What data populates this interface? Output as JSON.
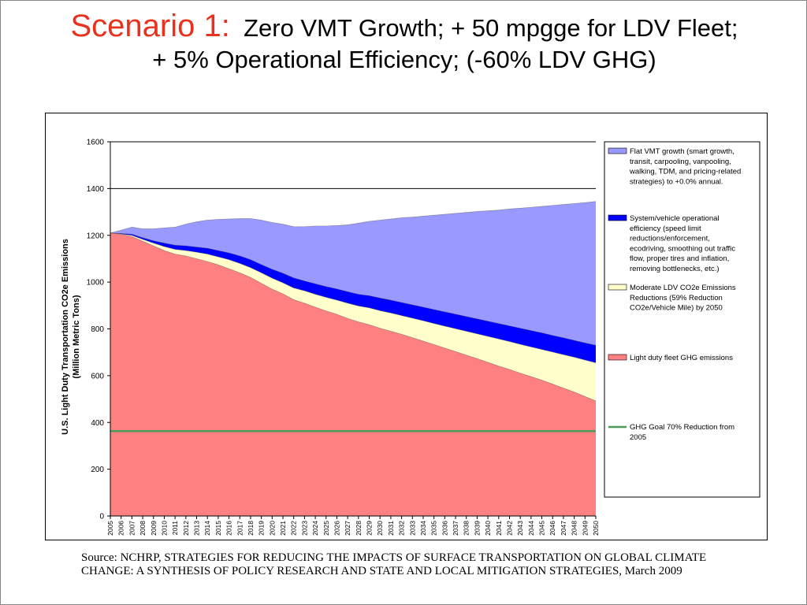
{
  "title": {
    "scenario": "Scenario 1",
    "colon": ":",
    "line1_rest": "Zero VMT Growth; + 50 mpgge for LDV Fleet;",
    "line2": "+ 5% Operational Efficiency; (-60% LDV GHG)"
  },
  "source": "Source:  NCHRP, STRATEGIES FOR REDUCING THE IMPACTS OF SURFACE TRANSPORTATION ON GLOBAL CLIMATE CHANGE:  A SYNTHESIS OF POLICY RESEARCH AND STATE AND LOCAL MITIGATION STRATEGIES, March 2009",
  "chart_data": {
    "type": "area",
    "ylabel_line1": "U.S. Light Duty Transportation CO2e Emissions",
    "ylabel_line2": "(Million  Metric Tons)",
    "ylim": [
      0,
      1600
    ],
    "yticks": [
      0,
      200,
      400,
      600,
      800,
      1000,
      1200,
      1400,
      1600
    ],
    "gridlines": [
      1400,
      1600
    ],
    "legend_position": "right",
    "x": [
      2005,
      2006,
      2007,
      2008,
      2009,
      2010,
      2011,
      2012,
      2013,
      2014,
      2015,
      2016,
      2017,
      2018,
      2019,
      2020,
      2021,
      2022,
      2023,
      2024,
      2025,
      2026,
      2027,
      2028,
      2029,
      2030,
      2031,
      2032,
      2033,
      2034,
      2035,
      2036,
      2037,
      2038,
      2039,
      2040,
      2041,
      2042,
      2043,
      2044,
      2045,
      2046,
      2047,
      2048,
      2049,
      2050
    ],
    "series": [
      {
        "name": "Light duty fleet GHG emissions",
        "color": "#ff8080",
        "values": [
          1210,
          1205,
          1195,
          1175,
          1155,
          1135,
          1120,
          1112,
          1100,
          1088,
          1074,
          1057,
          1040,
          1020,
          995,
          970,
          950,
          925,
          910,
          893,
          877,
          862,
          845,
          830,
          818,
          803,
          790,
          777,
          763,
          748,
          733,
          718,
          703,
          688,
          673,
          657,
          641,
          627,
          611,
          596,
          581,
          564,
          547,
          530,
          511,
          492
        ]
      },
      {
        "name": "Moderate LDV CO2e Emissions Reductions (59% Reduction CO2e/Vehicle Mile) by 2050",
        "color": "#ffffcc",
        "values": [
          1210,
          1206,
          1200,
          1183,
          1167,
          1152,
          1140,
          1135,
          1128,
          1120,
          1108,
          1096,
          1080,
          1062,
          1040,
          1017,
          997,
          975,
          963,
          948,
          935,
          923,
          910,
          898,
          890,
          878,
          868,
          857,
          846,
          835,
          823,
          812,
          801,
          790,
          779,
          768,
          757,
          746,
          734,
          723,
          712,
          701,
          690,
          679,
          667,
          655
        ]
      },
      {
        "name": "System/vehicle operational efficiency (speed limit reductions/enforcement, ecodriving, smoothing out traffic flow, proper tires and inflation, removing bottlenecks, etc.)",
        "color": "#0000ff",
        "values": [
          1210,
          1208,
          1205,
          1190,
          1177,
          1167,
          1158,
          1155,
          1150,
          1145,
          1135,
          1125,
          1112,
          1096,
          1075,
          1055,
          1038,
          1018,
          1005,
          993,
          981,
          971,
          959,
          948,
          942,
          932,
          923,
          913,
          903,
          893,
          883,
          873,
          863,
          853,
          843,
          833,
          823,
          813,
          803,
          793,
          783,
          772,
          762,
          751,
          740,
          730
        ]
      },
      {
        "name": "Flat VMT growth (smart growth, transit, carpooling, vanpooling, walking, TDM, and pricing-related strategies) to +0.0% annual.",
        "color": "#9999ff",
        "values": [
          1210,
          1222,
          1235,
          1228,
          1228,
          1232,
          1235,
          1248,
          1258,
          1265,
          1268,
          1270,
          1272,
          1272,
          1265,
          1255,
          1248,
          1237,
          1237,
          1240,
          1240,
          1242,
          1245,
          1252,
          1260,
          1265,
          1270,
          1275,
          1278,
          1282,
          1286,
          1290,
          1294,
          1298,
          1302,
          1305,
          1308,
          1313,
          1316,
          1320,
          1324,
          1328,
          1332,
          1336,
          1340,
          1345
        ]
      }
    ],
    "goal_line": {
      "name": "GHG Goal 70% Reduction from 2005",
      "color": "#4a9a5a",
      "value": 363
    },
    "legend_order": [
      "Flat VMT growth (smart growth, transit, carpooling, vanpooling, walking, TDM, and pricing-related strategies) to +0.0% annual.",
      "System/vehicle operational efficiency (speed limit reductions/enforcement, ecodriving, smoothing out traffic flow, proper tires and inflation, removing bottlenecks, etc.)",
      "Moderate LDV CO2e Emissions Reductions (59% Reduction CO2e/Vehicle Mile) by 2050",
      "Light duty fleet GHG emissions",
      "GHG Goal 70% Reduction from 2005"
    ]
  }
}
